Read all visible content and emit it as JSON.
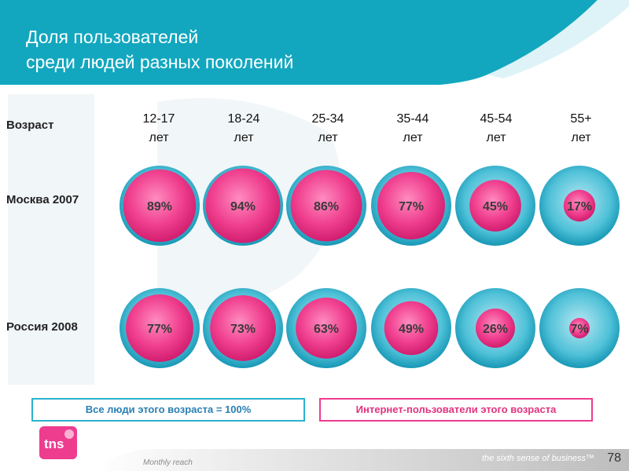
{
  "title": {
    "line1": "Доля пользователей",
    "line2": "среди людей разных поколений"
  },
  "colors": {
    "header": "#12a7bf",
    "outer_circle": "#2ab3cf",
    "inner_circle": "#ee3c8f",
    "legend_outer_border": "#2ab3cf",
    "legend_outer_text": "#2a7fb3",
    "legend_inner_border": "#ee3c8f",
    "legend_inner_text": "#e2337f"
  },
  "chart_data": {
    "type": "bubble",
    "row_header": "Возраст",
    "categories": [
      {
        "top": "12-17",
        "bottom": "лет"
      },
      {
        "top": "18-24",
        "bottom": "лет"
      },
      {
        "top": "25-34",
        "bottom": "лет"
      },
      {
        "top": "35-44",
        "bottom": "лет"
      },
      {
        "top": "45-54",
        "bottom": "лет"
      },
      {
        "top": "55+",
        "bottom": "лет"
      }
    ],
    "series": [
      {
        "name": "Москва 2007",
        "values": [
          89,
          94,
          86,
          77,
          45,
          17
        ],
        "labels": [
          "89%",
          "94%",
          "86%",
          "77%",
          "45%",
          "17%"
        ]
      },
      {
        "name": "Россия 2008",
        "values": [
          77,
          73,
          63,
          49,
          26,
          7
        ],
        "labels": [
          "77%",
          "73%",
          "63%",
          "49%",
          "26%",
          "7%"
        ]
      }
    ],
    "legend": {
      "outer": "Все люди этого возраста = 100%",
      "inner": "Интернет-пользователи этого возраста"
    }
  },
  "footer": {
    "note": "Monthly reach",
    "tagline": "the sixth sense of business™",
    "page_number": "78",
    "logo_text": "tns"
  }
}
